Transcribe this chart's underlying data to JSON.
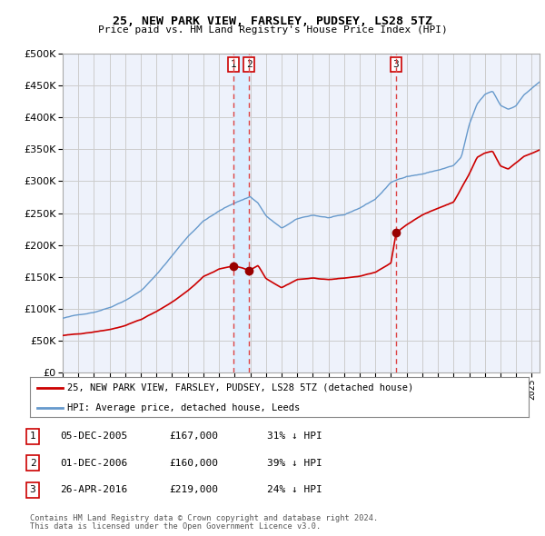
{
  "title": "25, NEW PARK VIEW, FARSLEY, PUDSEY, LS28 5TZ",
  "subtitle": "Price paid vs. HM Land Registry's House Price Index (HPI)",
  "footer1": "Contains HM Land Registry data © Crown copyright and database right 2024.",
  "footer2": "This data is licensed under the Open Government Licence v3.0.",
  "legend_label_red": "25, NEW PARK VIEW, FARSLEY, PUDSEY, LS28 5TZ (detached house)",
  "legend_label_blue": "HPI: Average price, detached house, Leeds",
  "table": [
    {
      "num": "1",
      "date": "05-DEC-2005",
      "price": "£167,000",
      "hpi": "31% ↓ HPI"
    },
    {
      "num": "2",
      "date": "01-DEC-2006",
      "price": "£160,000",
      "hpi": "39% ↓ HPI"
    },
    {
      "num": "3",
      "date": "26-APR-2016",
      "price": "£219,000",
      "hpi": "24% ↓ HPI"
    }
  ],
  "vline1_x": 2005.92,
  "vline2_x": 2006.92,
  "vline3_x": 2016.32,
  "sale1_x": 2005.92,
  "sale1_y": 167000,
  "sale2_x": 2006.92,
  "sale2_y": 160000,
  "sale3_x": 2016.32,
  "sale3_y": 219000,
  "highlight_xmin": 2005.92,
  "highlight_xmax": 2006.92,
  "ylim": [
    0,
    500000
  ],
  "xlim": [
    1995,
    2025.5
  ],
  "red_color": "#cc0000",
  "blue_color": "#6699cc",
  "highlight_color": "#ddeeff",
  "vline_color": "#dd4444",
  "grid_color": "#cccccc",
  "bg_color": "#eef2fb"
}
